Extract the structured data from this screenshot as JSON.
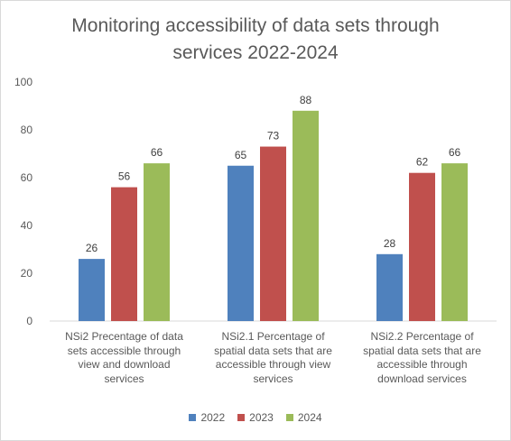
{
  "chart_data": {
    "type": "bar",
    "title_lines": [
      "Monitoring accessibility of data sets through",
      "services 2022-2024"
    ],
    "categories": [
      {
        "lines": [
          "NSi2 Precentage of data",
          "sets accessible through",
          "view and download",
          "services"
        ]
      },
      {
        "lines": [
          "NSi2.1 Percentage of",
          "spatial data sets that are",
          "accessible through view",
          "services"
        ]
      },
      {
        "lines": [
          "NSi2.2 Percentage of",
          "spatial data sets that are",
          "accessible through",
          "download services"
        ]
      }
    ],
    "series": [
      {
        "name": "2022",
        "color": "#4f81bd",
        "values": [
          26,
          65,
          28
        ]
      },
      {
        "name": "2023",
        "color": "#c0504d",
        "values": [
          56,
          73,
          62
        ]
      },
      {
        "name": "2024",
        "color": "#9bbb59",
        "values": [
          66,
          88,
          66
        ]
      }
    ],
    "ylim": [
      0,
      100
    ],
    "yticks": [
      "0",
      "20",
      "40",
      "60",
      "80",
      "100"
    ],
    "xlabel": "",
    "ylabel": "",
    "grid": false,
    "legend_position": "bottom"
  }
}
